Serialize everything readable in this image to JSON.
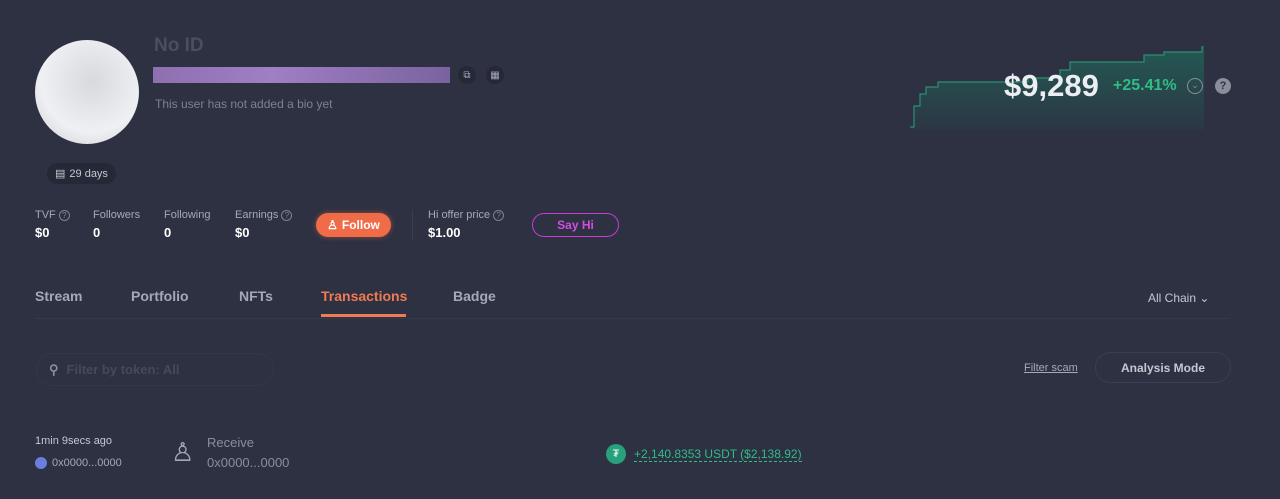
{
  "profile": {
    "name": "No ID",
    "bio": "This user has not added a bio yet",
    "age": "29 days"
  },
  "stats": [
    {
      "label": "TVF",
      "value": "$0"
    },
    {
      "label": "Followers",
      "value": "0"
    },
    {
      "label": "Following",
      "value": "0"
    },
    {
      "label": "Earnings",
      "value": "$0"
    }
  ],
  "follow_label": "Follow",
  "hi_offer": {
    "label": "Hi offer price",
    "value": "$1.00"
  },
  "say_hi_label": "Say Hi",
  "balance": {
    "value": "$9,289",
    "change": "+25.41%",
    "color_up": "#2ebd85"
  },
  "tabs": [
    "Stream",
    "Portfolio",
    "NFTs",
    "Transactions",
    "Badge"
  ],
  "active_tab": "Transactions",
  "chain_select": "All Chain",
  "search": {
    "placeholder": "Filter by token: All"
  },
  "filter_scam": "Filter scam",
  "analysis_mode": "Analysis Mode",
  "transactions": [
    {
      "time": "1min 9secs ago",
      "from": "0x0000...0000",
      "type": "Receive",
      "counterparty": "0x0000...0000",
      "amount": "+2,140.8353 USDT ($2,138.92)"
    }
  ]
}
